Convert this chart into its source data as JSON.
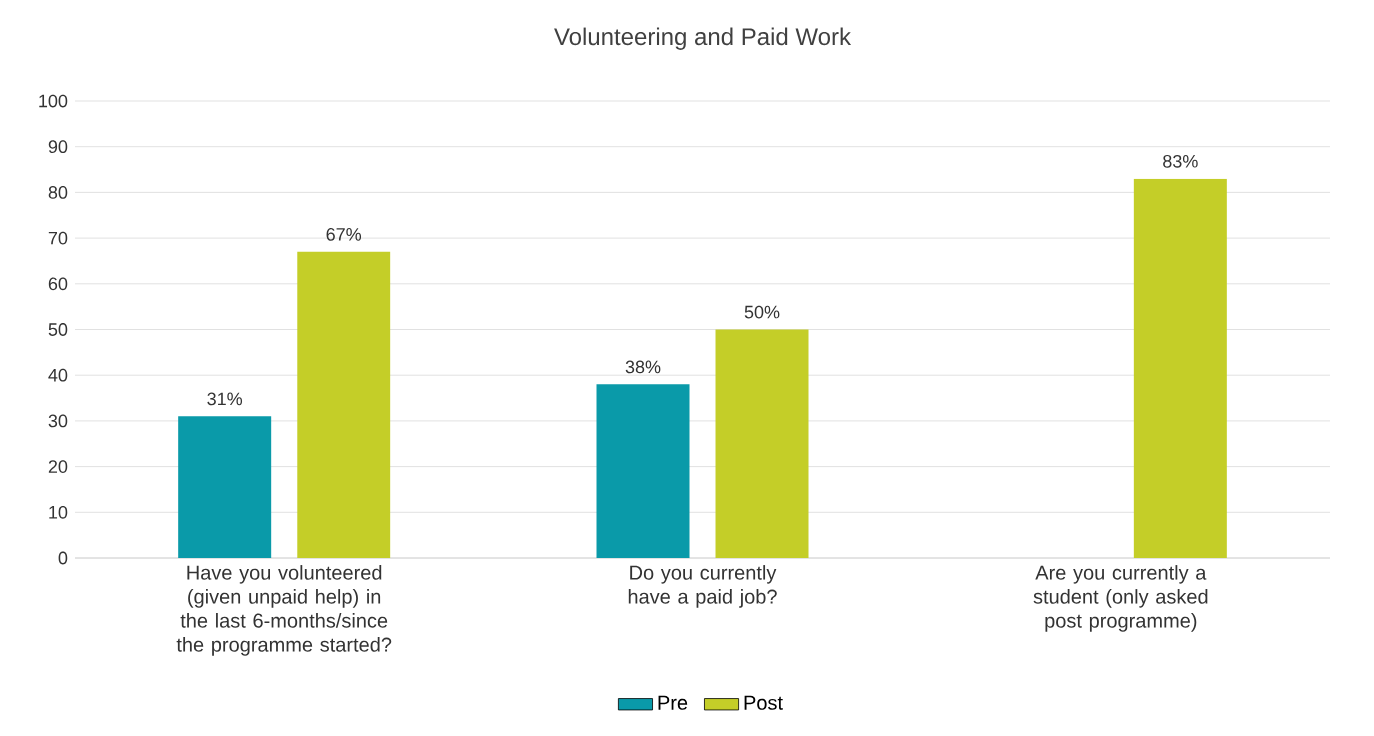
{
  "chart_data": {
    "type": "bar",
    "title": "Volunteering and Paid Work",
    "categories": [
      "Have you volunteered (given unpaid help) in the last 6-months/since the programme started?",
      "Do you currently have a paid job?",
      "Are you currently a student (only asked post programme)"
    ],
    "series": [
      {
        "name": "Pre",
        "color": "#0a9aa9",
        "values": [
          31,
          38,
          null
        ],
        "value_labels": [
          "31%",
          "38%",
          null
        ]
      },
      {
        "name": "Post",
        "color": "#c4ce28",
        "values": [
          67,
          50,
          83
        ],
        "value_labels": [
          "67%",
          "50%",
          "83%"
        ]
      }
    ],
    "ylim": [
      0,
      100
    ],
    "yticks": [
      0,
      10,
      20,
      30,
      40,
      50,
      60,
      70,
      80,
      90,
      100
    ],
    "grid": "y",
    "legend": "bottom"
  }
}
